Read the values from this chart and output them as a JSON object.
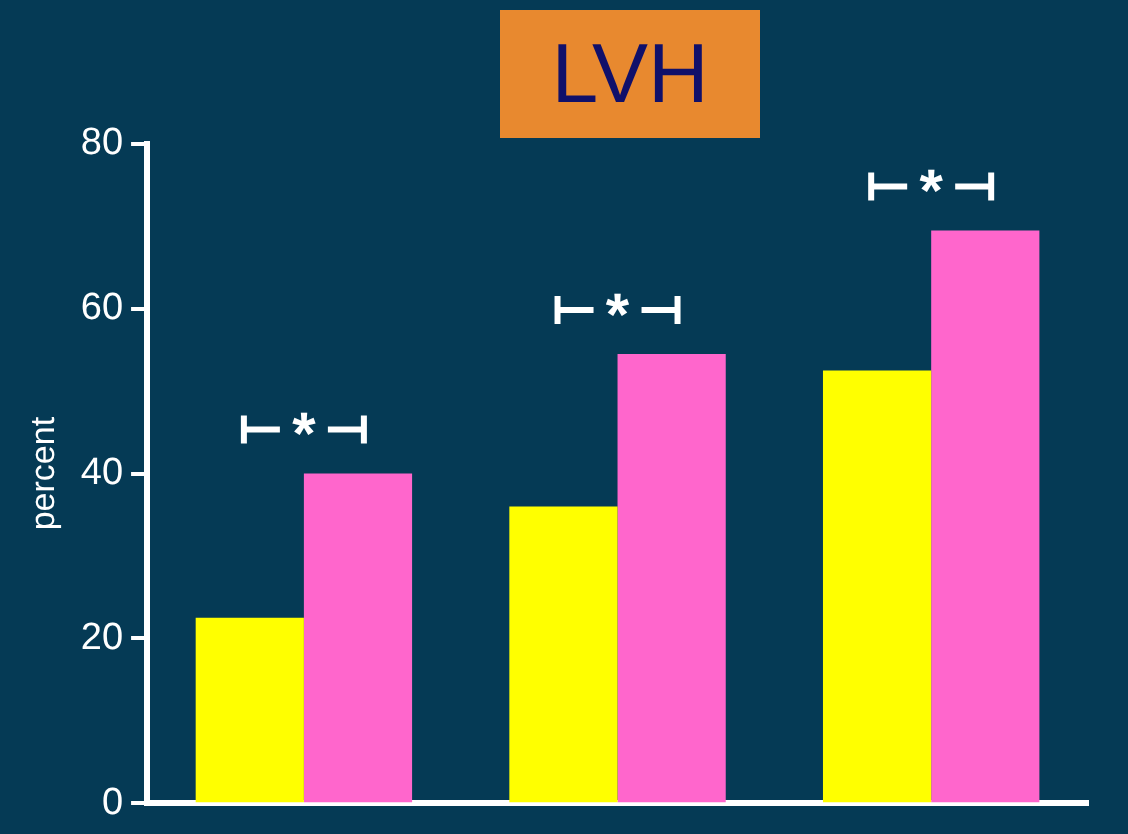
{
  "chart_data": {
    "type": "bar",
    "title": "LVH",
    "ylabel": "percent",
    "categories": [
      null,
      null,
      null
    ],
    "series": [
      {
        "color": "#ffff00",
        "values": [
          22.5,
          36,
          52.5
        ]
      },
      {
        "color": "#ff66cc",
        "values": [
          40,
          54.5,
          69.5
        ]
      }
    ],
    "ylim": [
      0,
      80
    ],
    "yticks": [
      0,
      20,
      40,
      60,
      80
    ],
    "grid": false,
    "legend": false,
    "tick_labels": "y",
    "annotations": [
      "*",
      "*",
      "*"
    ]
  }
}
